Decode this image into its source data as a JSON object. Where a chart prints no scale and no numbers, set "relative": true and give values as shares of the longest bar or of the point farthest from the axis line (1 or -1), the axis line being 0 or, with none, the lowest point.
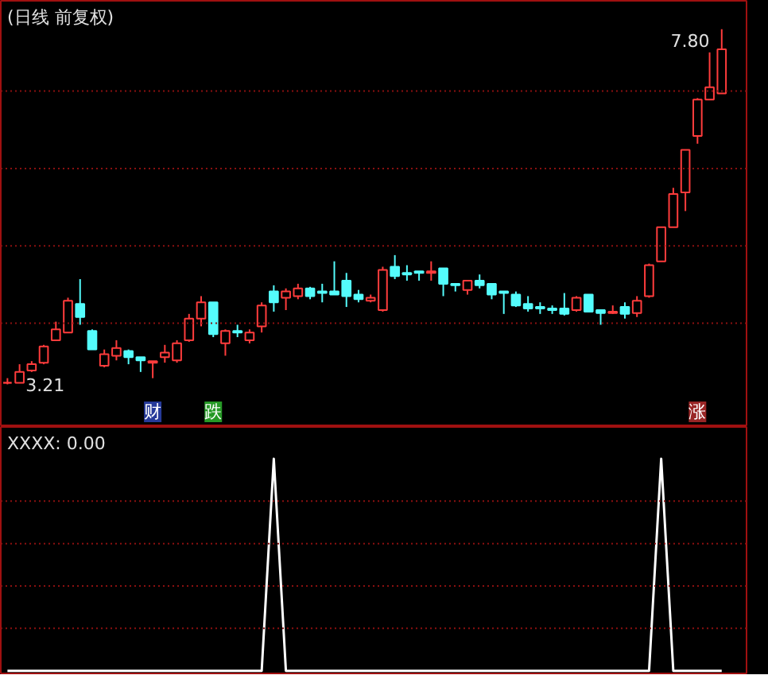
{
  "chart_data": [
    {
      "type": "candlestick",
      "title": "(日线 前复权)",
      "categories": [
        null,
        null,
        null,
        null,
        null,
        null,
        null,
        null,
        null,
        null,
        null,
        null,
        null,
        null,
        null,
        null,
        null,
        null,
        null,
        null,
        null,
        null,
        null,
        null,
        null,
        null,
        null,
        null,
        null,
        null,
        null,
        null,
        null,
        null,
        null,
        null,
        null,
        null,
        null,
        null,
        null,
        null,
        null,
        null,
        null,
        null,
        null,
        null,
        null,
        null,
        null,
        null,
        null,
        null,
        null,
        null,
        null,
        null,
        null,
        null
      ],
      "ohlc": [
        [
          3.23,
          3.29,
          3.21,
          3.23
        ],
        [
          3.23,
          3.47,
          3.23,
          3.37
        ],
        [
          3.39,
          3.51,
          3.37,
          3.47
        ],
        [
          3.49,
          3.72,
          3.47,
          3.7
        ],
        [
          3.78,
          4.02,
          3.78,
          3.92
        ],
        [
          3.88,
          4.33,
          3.88,
          4.29
        ],
        [
          4.25,
          4.57,
          3.98,
          4.08
        ],
        [
          3.9,
          3.92,
          3.66,
          3.66
        ],
        [
          3.45,
          3.66,
          3.43,
          3.6
        ],
        [
          3.58,
          3.78,
          3.52,
          3.68
        ],
        [
          3.64,
          3.66,
          3.47,
          3.56
        ],
        [
          3.56,
          3.56,
          3.37,
          3.52
        ],
        [
          3.49,
          3.51,
          3.29,
          3.51
        ],
        [
          3.56,
          3.72,
          3.49,
          3.62
        ],
        [
          3.52,
          3.78,
          3.49,
          3.74
        ],
        [
          3.78,
          4.12,
          3.76,
          4.06
        ],
        [
          4.06,
          4.35,
          3.96,
          4.27
        ],
        [
          4.27,
          4.27,
          3.82,
          3.86
        ],
        [
          3.74,
          3.92,
          3.58,
          3.9
        ],
        [
          3.9,
          3.98,
          3.82,
          3.88
        ],
        [
          3.78,
          3.92,
          3.74,
          3.88
        ],
        [
          3.96,
          4.27,
          3.88,
          4.23
        ],
        [
          4.41,
          4.49,
          4.15,
          4.27
        ],
        [
          4.33,
          4.45,
          4.17,
          4.41
        ],
        [
          4.35,
          4.51,
          4.31,
          4.45
        ],
        [
          4.45,
          4.47,
          4.31,
          4.35
        ],
        [
          4.41,
          4.51,
          4.27,
          4.39
        ],
        [
          4.41,
          4.8,
          4.37,
          4.37
        ],
        [
          4.55,
          4.65,
          4.21,
          4.35
        ],
        [
          4.37,
          4.43,
          4.27,
          4.31
        ],
        [
          4.29,
          4.37,
          4.27,
          4.33
        ],
        [
          4.17,
          4.73,
          4.15,
          4.69
        ],
        [
          4.73,
          4.88,
          4.57,
          4.61
        ],
        [
          4.65,
          4.75,
          4.55,
          4.63
        ],
        [
          4.67,
          4.67,
          4.55,
          4.65
        ],
        [
          4.65,
          4.8,
          4.55,
          4.67
        ],
        [
          4.71,
          4.71,
          4.35,
          4.51
        ],
        [
          4.51,
          4.51,
          4.41,
          4.49
        ],
        [
          4.43,
          4.55,
          4.37,
          4.55
        ],
        [
          4.55,
          4.63,
          4.45,
          4.49
        ],
        [
          4.51,
          4.51,
          4.31,
          4.37
        ],
        [
          4.41,
          4.41,
          4.12,
          4.39
        ],
        [
          4.37,
          4.41,
          4.21,
          4.23
        ],
        [
          4.25,
          4.35,
          4.15,
          4.19
        ],
        [
          4.21,
          4.27,
          4.12,
          4.19
        ],
        [
          4.19,
          4.23,
          4.12,
          4.17
        ],
        [
          4.19,
          4.39,
          4.1,
          4.12
        ],
        [
          4.17,
          4.35,
          4.15,
          4.33
        ],
        [
          4.37,
          4.37,
          4.15,
          4.15
        ],
        [
          4.17,
          4.17,
          3.98,
          4.13
        ],
        [
          4.13,
          4.23,
          4.12,
          4.15
        ],
        [
          4.21,
          4.27,
          4.06,
          4.12
        ],
        [
          4.13,
          4.35,
          4.08,
          4.29
        ],
        [
          4.35,
          4.77,
          4.33,
          4.75
        ],
        [
          4.8,
          5.24,
          4.8,
          5.24
        ],
        [
          5.24,
          5.75,
          5.24,
          5.67
        ],
        [
          5.69,
          6.24,
          5.45,
          6.24
        ],
        [
          6.42,
          6.91,
          6.32,
          6.89
        ],
        [
          6.89,
          7.5,
          6.89,
          7.05
        ],
        [
          6.97,
          7.8,
          6.97,
          7.54
        ]
      ],
      "colors": [
        "#ff3c3c",
        "#ff3c3c",
        "#ff3c3c",
        "#ff3c3c",
        "#ff3c3c",
        "#ff3c3c",
        "#54fcfc",
        "#54fcfc",
        "#ff3c3c",
        "#ff3c3c",
        "#54fcfc",
        "#54fcfc",
        "#ff3c3c",
        "#ff3c3c",
        "#ff3c3c",
        "#ff3c3c",
        "#ff3c3c",
        "#54fcfc",
        "#ff3c3c",
        "#54fcfc",
        "#ff3c3c",
        "#ff3c3c",
        "#54fcfc",
        "#ff3c3c",
        "#ff3c3c",
        "#54fcfc",
        "#54fcfc",
        "#54fcfc",
        "#54fcfc",
        "#54fcfc",
        "#ff3c3c",
        "#ff3c3c",
        "#54fcfc",
        "#54fcfc",
        "#54fcfc",
        "#ff3c3c",
        "#54fcfc",
        "#54fcfc",
        "#ff3c3c",
        "#54fcfc",
        "#54fcfc",
        "#54fcfc",
        "#54fcfc",
        "#54fcfc",
        "#54fcfc",
        "#54fcfc",
        "#54fcfc",
        "#ff3c3c",
        "#54fcfc",
        "#54fcfc",
        "#ff3c3c",
        "#54fcfc",
        "#ff3c3c",
        "#ff3c3c",
        "#ff3c3c",
        "#ff3c3c",
        "#ff3c3c",
        "#ff3c3c",
        "#ff3c3c",
        "#ff3c3c"
      ],
      "ref_lines": [
        {
          "axis": "y",
          "value": 4,
          "color": "#8a1010",
          "line_style": "dotted"
        },
        {
          "axis": "y",
          "value": 5,
          "color": "#8a1010",
          "line_style": "dotted"
        },
        {
          "axis": "y",
          "value": 6,
          "color": "#8a1010",
          "line_style": "dotted"
        },
        {
          "axis": "y",
          "value": 7,
          "color": "#8a1010",
          "line_style": "dotted"
        }
      ],
      "annotations": [
        "3.21",
        "7.80",
        "财",
        "跌",
        "涨"
      ]
    },
    {
      "type": "line",
      "title": "XXXX: 0.00",
      "relative": true,
      "ref_lines": [
        {
          "axis": "y",
          "value": 0.2,
          "color": "#8a1010",
          "line_style": "dotted"
        },
        {
          "axis": "y",
          "value": 0.4,
          "color": "#8a1010",
          "line_style": "dotted"
        },
        {
          "axis": "y",
          "value": 0.6,
          "color": "#8a1010",
          "line_style": "dotted"
        },
        {
          "axis": "y",
          "value": 0.8,
          "color": "#8a1010",
          "line_style": "dotted"
        }
      ],
      "categories": [
        null,
        null,
        null,
        null,
        null,
        null,
        null,
        null,
        null,
        null,
        null,
        null,
        null,
        null,
        null,
        null,
        null,
        null,
        null,
        null,
        null,
        null,
        null,
        null,
        null,
        null,
        null,
        null,
        null,
        null,
        null,
        null,
        null,
        null,
        null,
        null,
        null,
        null,
        null,
        null,
        null,
        null,
        null,
        null,
        null,
        null,
        null,
        null,
        null,
        null,
        null,
        null,
        null,
        null,
        null,
        null,
        null,
        null,
        null,
        null
      ],
      "series": [
        {
          "color": "#ffffff",
          "values": [
            0,
            0,
            0,
            0,
            0,
            0,
            0,
            0,
            0,
            0,
            0,
            0,
            0,
            0,
            0,
            0,
            0,
            0,
            0,
            0,
            0,
            0,
            1,
            0,
            0,
            0,
            0,
            0,
            0,
            0,
            0,
            0,
            0,
            0,
            0,
            0,
            0,
            0,
            0,
            0,
            0,
            0,
            0,
            0,
            0,
            0,
            0,
            0,
            0,
            0,
            0,
            0,
            0,
            0,
            1,
            0,
            0,
            0,
            0,
            0
          ]
        }
      ]
    }
  ]
}
